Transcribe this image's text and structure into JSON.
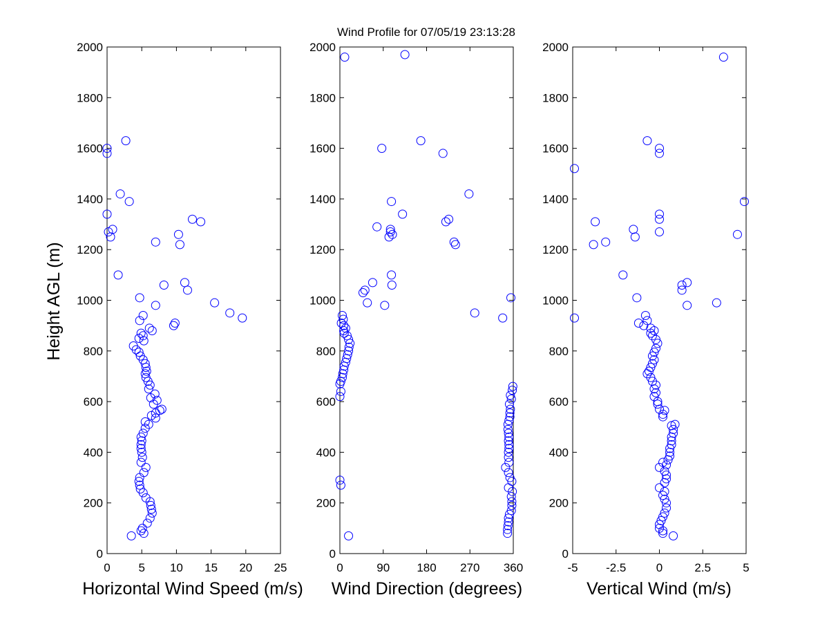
{
  "chart_data": {
    "type": "scatter",
    "title": "Wind Profile for  07/05/19 23:13:28",
    "ylabel": "Height AGL (m)",
    "ylim": [
      0,
      2000
    ],
    "yticks": [
      0,
      200,
      400,
      600,
      800,
      1000,
      1200,
      1400,
      1600,
      1800,
      2000
    ],
    "marker_color": "#0000ff",
    "panels": [
      {
        "id": "speed",
        "xlabel": "Horizontal Wind Speed (m/s)",
        "xlim": [
          0,
          25
        ],
        "xticks": [
          0,
          5,
          10,
          15,
          20,
          25
        ],
        "xtick_labels": [
          "0",
          "5",
          "10",
          "15",
          "20",
          "25"
        ],
        "points": [
          [
            3.5,
            70
          ],
          [
            5.3,
            80
          ],
          [
            4.9,
            90
          ],
          [
            5.1,
            100
          ],
          [
            5.8,
            120
          ],
          [
            6.2,
            140
          ],
          [
            6.5,
            160
          ],
          [
            6.4,
            175
          ],
          [
            6.3,
            190
          ],
          [
            6.2,
            205
          ],
          [
            5.6,
            220
          ],
          [
            5.2,
            240
          ],
          [
            4.8,
            255
          ],
          [
            4.7,
            270
          ],
          [
            4.6,
            285
          ],
          [
            4.7,
            300
          ],
          [
            5.3,
            320
          ],
          [
            5.6,
            340
          ],
          [
            4.9,
            360
          ],
          [
            5.1,
            380
          ],
          [
            5.0,
            400
          ],
          [
            4.9,
            415
          ],
          [
            4.9,
            430
          ],
          [
            5.0,
            445
          ],
          [
            4.9,
            460
          ],
          [
            5.2,
            475
          ],
          [
            5.5,
            495
          ],
          [
            6.0,
            510
          ],
          [
            5.5,
            520
          ],
          [
            7.0,
            535
          ],
          [
            6.4,
            545
          ],
          [
            7.0,
            555
          ],
          [
            7.6,
            565
          ],
          [
            7.9,
            570
          ],
          [
            6.7,
            590
          ],
          [
            7.2,
            605
          ],
          [
            6.3,
            615
          ],
          [
            6.9,
            630
          ],
          [
            6.0,
            650
          ],
          [
            6.2,
            665
          ],
          [
            5.9,
            680
          ],
          [
            5.6,
            695
          ],
          [
            5.5,
            710
          ],
          [
            5.7,
            720
          ],
          [
            5.6,
            735
          ],
          [
            5.5,
            750
          ],
          [
            5.2,
            765
          ],
          [
            4.8,
            780
          ],
          [
            4.6,
            795
          ],
          [
            4.2,
            805
          ],
          [
            3.8,
            820
          ],
          [
            5.3,
            840
          ],
          [
            4.6,
            850
          ],
          [
            5.2,
            860
          ],
          [
            4.9,
            870
          ],
          [
            6.5,
            880
          ],
          [
            6.1,
            890
          ],
          [
            9.6,
            900
          ],
          [
            9.8,
            910
          ],
          [
            4.7,
            920
          ],
          [
            5.2,
            940
          ],
          [
            19.5,
            930
          ],
          [
            17.7,
            950
          ],
          [
            15.5,
            990
          ],
          [
            7.0,
            980
          ],
          [
            4.7,
            1010
          ],
          [
            11.6,
            1040
          ],
          [
            8.2,
            1060
          ],
          [
            11.2,
            1070
          ],
          [
            1.6,
            1100
          ],
          [
            10.5,
            1220
          ],
          [
            7.0,
            1230
          ],
          [
            0.5,
            1250
          ],
          [
            10.3,
            1260
          ],
          [
            0.2,
            1270
          ],
          [
            0.8,
            1280
          ],
          [
            13.5,
            1310
          ],
          [
            12.3,
            1320
          ],
          [
            0.0,
            1340
          ],
          [
            3.2,
            1390
          ],
          [
            1.9,
            1420
          ],
          [
            0.0,
            1580
          ],
          [
            0.0,
            1600
          ],
          [
            2.7,
            1630
          ]
        ]
      },
      {
        "id": "direction",
        "xlabel": "Wind Direction (degrees)",
        "xlim": [
          0,
          360
        ],
        "xticks": [
          0,
          90,
          180,
          270,
          360
        ],
        "xtick_labels": [
          "0",
          "90",
          "180",
          "270",
          "360"
        ],
        "points": [
          [
            18,
            70
          ],
          [
            348,
            80
          ],
          [
            348,
            95
          ],
          [
            349,
            110
          ],
          [
            350,
            125
          ],
          [
            350,
            140
          ],
          [
            352,
            155
          ],
          [
            356,
            170
          ],
          [
            357,
            190
          ],
          [
            357,
            205
          ],
          [
            356,
            225
          ],
          [
            358,
            245
          ],
          [
            350,
            260
          ],
          [
            357,
            285
          ],
          [
            353,
            300
          ],
          [
            350,
            320
          ],
          [
            344,
            340
          ],
          [
            351,
            360
          ],
          [
            350,
            380
          ],
          [
            350,
            400
          ],
          [
            351,
            415
          ],
          [
            351,
            430
          ],
          [
            350,
            445
          ],
          [
            351,
            460
          ],
          [
            350,
            475
          ],
          [
            349,
            490
          ],
          [
            349,
            510
          ],
          [
            351,
            525
          ],
          [
            353,
            540
          ],
          [
            353,
            555
          ],
          [
            354,
            570
          ],
          [
            352,
            590
          ],
          [
            356,
            610
          ],
          [
            354,
            625
          ],
          [
            0,
            620
          ],
          [
            358,
            645
          ],
          [
            359,
            660
          ],
          [
            2,
            640
          ],
          [
            0,
            670
          ],
          [
            2,
            680
          ],
          [
            5,
            695
          ],
          [
            6,
            710
          ],
          [
            8,
            725
          ],
          [
            9,
            740
          ],
          [
            12,
            755
          ],
          [
            14,
            770
          ],
          [
            16,
            785
          ],
          [
            18,
            800
          ],
          [
            19,
            815
          ],
          [
            21,
            830
          ],
          [
            18,
            845
          ],
          [
            15,
            860
          ],
          [
            9,
            870
          ],
          [
            8,
            880
          ],
          [
            12,
            890
          ],
          [
            8,
            900
          ],
          [
            3,
            910
          ],
          [
            7,
            925
          ],
          [
            5,
            940
          ],
          [
            0,
            290
          ],
          [
            2,
            270
          ],
          [
            10,
            1960
          ],
          [
            135,
            1970
          ],
          [
            338,
            930
          ],
          [
            280,
            950
          ],
          [
            355,
            1010
          ],
          [
            93,
            980
          ],
          [
            57,
            990
          ],
          [
            48,
            1030
          ],
          [
            52,
            1040
          ],
          [
            108,
            1060
          ],
          [
            68,
            1070
          ],
          [
            107,
            1100
          ],
          [
            240,
            1220
          ],
          [
            237,
            1230
          ],
          [
            102,
            1250
          ],
          [
            109,
            1260
          ],
          [
            105,
            1270
          ],
          [
            105,
            1280
          ],
          [
            77,
            1290
          ],
          [
            220,
            1310
          ],
          [
            226,
            1320
          ],
          [
            130,
            1340
          ],
          [
            107,
            1390
          ],
          [
            268,
            1420
          ],
          [
            214,
            1580
          ],
          [
            87,
            1600
          ],
          [
            168,
            1630
          ]
        ]
      },
      {
        "id": "vertical",
        "xlabel": "Vertical Wind (m/s)",
        "xlim": [
          -5,
          5
        ],
        "xticks": [
          -5,
          -2.5,
          0,
          2.5,
          5
        ],
        "xtick_labels": [
          "-5",
          "-2.5",
          "0",
          "2.5",
          "5"
        ],
        "points": [
          [
            0.8,
            70
          ],
          [
            0.2,
            80
          ],
          [
            0.2,
            90
          ],
          [
            0.0,
            100
          ],
          [
            0.0,
            115
          ],
          [
            0.1,
            130
          ],
          [
            0.2,
            145
          ],
          [
            0.3,
            160
          ],
          [
            0.4,
            180
          ],
          [
            0.4,
            200
          ],
          [
            0.3,
            215
          ],
          [
            0.2,
            230
          ],
          [
            0.3,
            245
          ],
          [
            0.0,
            260
          ],
          [
            0.3,
            280
          ],
          [
            0.4,
            295
          ],
          [
            0.4,
            310
          ],
          [
            0.3,
            325
          ],
          [
            0.0,
            340
          ],
          [
            0.4,
            350
          ],
          [
            0.2,
            360
          ],
          [
            0.5,
            370
          ],
          [
            0.6,
            385
          ],
          [
            0.6,
            400
          ],
          [
            0.6,
            415
          ],
          [
            0.7,
            430
          ],
          [
            0.7,
            445
          ],
          [
            0.7,
            460
          ],
          [
            0.8,
            475
          ],
          [
            0.8,
            490
          ],
          [
            0.7,
            505
          ],
          [
            0.9,
            510
          ],
          [
            0.2,
            540
          ],
          [
            0.2,
            550
          ],
          [
            0.3,
            565
          ],
          [
            0.0,
            570
          ],
          [
            -0.1,
            590
          ],
          [
            -0.1,
            600
          ],
          [
            -0.3,
            620
          ],
          [
            -0.2,
            635
          ],
          [
            -0.3,
            650
          ],
          [
            -0.2,
            665
          ],
          [
            -0.4,
            680
          ],
          [
            -0.5,
            695
          ],
          [
            -0.7,
            710
          ],
          [
            -0.6,
            720
          ],
          [
            -0.5,
            735
          ],
          [
            -0.4,
            750
          ],
          [
            -0.3,
            765
          ],
          [
            -0.4,
            780
          ],
          [
            -0.3,
            795
          ],
          [
            -0.2,
            810
          ],
          [
            -0.1,
            830
          ],
          [
            -0.2,
            845
          ],
          [
            -0.4,
            860
          ],
          [
            -0.5,
            870
          ],
          [
            -0.3,
            880
          ],
          [
            -0.5,
            890
          ],
          [
            -0.9,
            900
          ],
          [
            -1.2,
            910
          ],
          [
            -0.7,
            920
          ],
          [
            -0.8,
            940
          ],
          [
            -4.9,
            930
          ],
          [
            1.6,
            980
          ],
          [
            3.3,
            990
          ],
          [
            -1.3,
            1010
          ],
          [
            1.3,
            1040
          ],
          [
            1.3,
            1060
          ],
          [
            1.6,
            1070
          ],
          [
            -2.1,
            1100
          ],
          [
            -3.8,
            1220
          ],
          [
            -3.1,
            1230
          ],
          [
            -1.4,
            1250
          ],
          [
            4.5,
            1260
          ],
          [
            0.0,
            1270
          ],
          [
            -1.5,
            1280
          ],
          [
            -3.7,
            1310
          ],
          [
            0.0,
            1320
          ],
          [
            0.0,
            1340
          ],
          [
            4.9,
            1390
          ],
          [
            -4.9,
            1520
          ],
          [
            0.0,
            1580
          ],
          [
            0.0,
            1600
          ],
          [
            -0.7,
            1630
          ],
          [
            3.7,
            1960
          ]
        ]
      }
    ]
  }
}
